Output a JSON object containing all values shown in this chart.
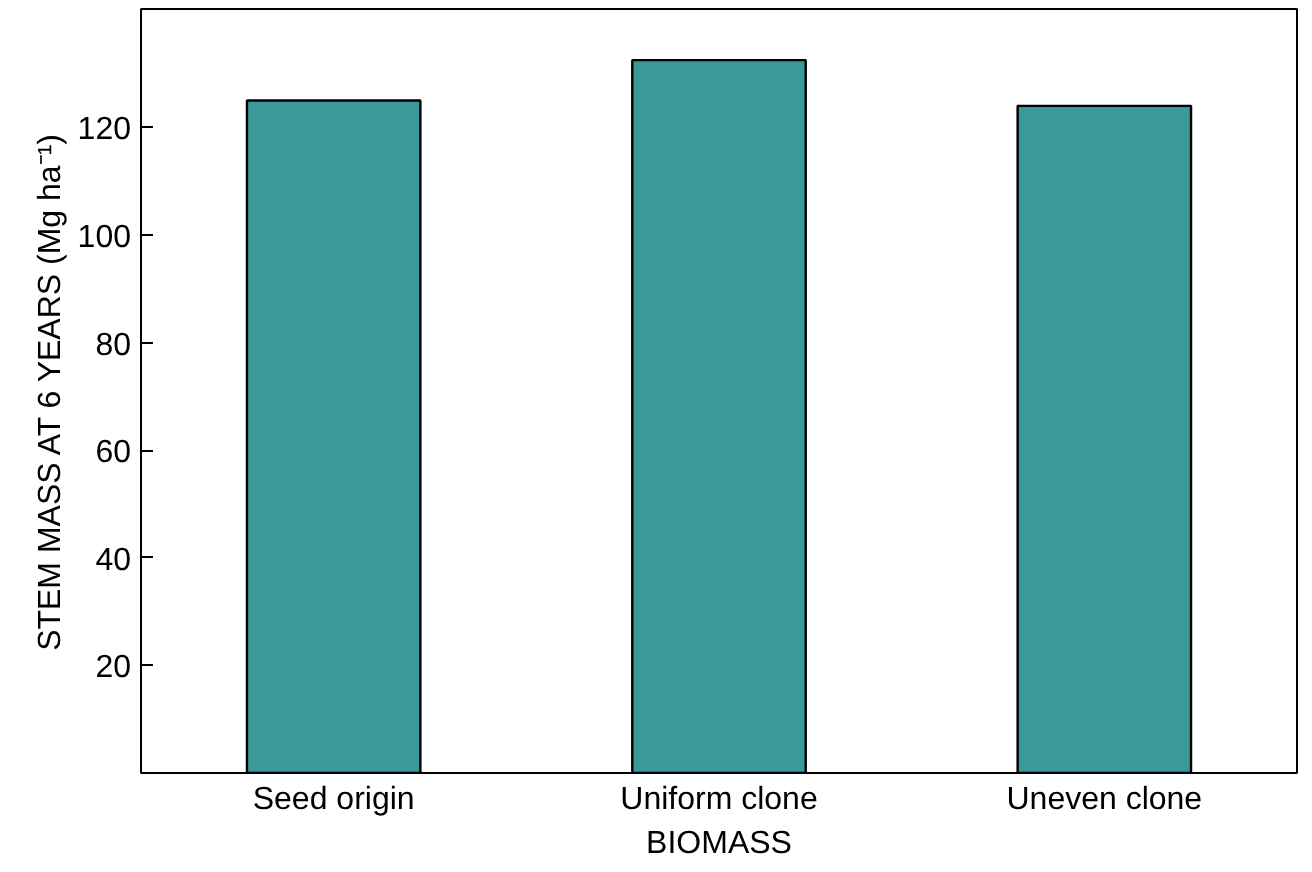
{
  "chart_data": {
    "type": "bar",
    "xlabel": "BIOMASS",
    "ylabel": "STEM MASS AT 6 YEARS (Mg ha⁻¹)",
    "categories": [
      "Seed origin",
      "Uniform clone",
      "Uneven clone"
    ],
    "values": [
      125,
      132.5,
      124
    ],
    "color": "#3a9a9a",
    "ylim": [
      0,
      142
    ],
    "yticks": [
      20,
      40,
      60,
      80,
      100,
      120
    ],
    "grid": false
  }
}
